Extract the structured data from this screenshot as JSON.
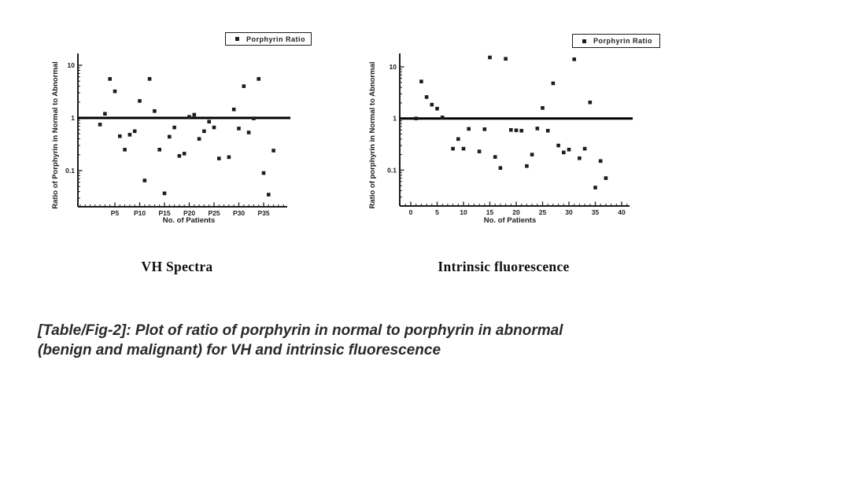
{
  "figure_caption": {
    "line1": "[Table/Fig-2]: Plot of ratio of porphyrin in normal to porphyrin in abnormal",
    "line2": "(benign and malignant) for VH and intrinsic fluorescence"
  },
  "colors": {
    "ink": "#1c1c1c",
    "reference_line": "#000000",
    "background": "#ffffff"
  },
  "chart_data": [
    {
      "type": "scatter",
      "title": "VH Spectra",
      "xlabel": "No. of Patients",
      "ylabel": "Ratio of Porphyrin in Normal to Abnormal",
      "legend": [
        "Porphyrin Ratio"
      ],
      "legend_position": "top-right-above-plot",
      "marker": "filled-square",
      "xscale": "linear",
      "yscale": "log",
      "grid": false,
      "xlim": [
        -2.5,
        39.8
      ],
      "ylim": [
        0.02,
        16.8
      ],
      "ref_line_y": 1,
      "xticks": [
        {
          "v": 5,
          "label": "P5"
        },
        {
          "v": 10,
          "label": "P10"
        },
        {
          "v": 15,
          "label": "P15"
        },
        {
          "v": 20,
          "label": "P20"
        },
        {
          "v": 25,
          "label": "P25"
        },
        {
          "v": 30,
          "label": "P30"
        },
        {
          "v": 35,
          "label": "P35"
        }
      ],
      "yticks": [
        {
          "v": 10,
          "label": "10"
        },
        {
          "v": 1,
          "label": "1"
        },
        {
          "v": 0.1,
          "label": "0.1"
        }
      ],
      "points": [
        [
          2,
          0.75
        ],
        [
          3,
          1.2
        ],
        [
          4,
          5.5
        ],
        [
          5,
          3.2
        ],
        [
          6,
          0.45
        ],
        [
          7,
          0.25
        ],
        [
          8,
          0.48
        ],
        [
          9,
          0.56
        ],
        [
          10,
          2.1
        ],
        [
          11,
          0.065
        ],
        [
          12,
          5.5
        ],
        [
          13,
          1.35
        ],
        [
          14,
          0.25
        ],
        [
          15,
          0.037
        ],
        [
          16,
          0.44
        ],
        [
          17,
          0.66
        ],
        [
          18,
          0.19
        ],
        [
          19,
          0.21
        ],
        [
          20,
          1.05
        ],
        [
          21,
          1.15
        ],
        [
          22,
          0.4
        ],
        [
          23,
          0.56
        ],
        [
          24,
          0.85
        ],
        [
          25,
          0.66
        ],
        [
          26,
          0.17
        ],
        [
          28,
          0.18
        ],
        [
          29,
          1.45
        ],
        [
          30,
          0.63
        ],
        [
          31,
          4.0
        ],
        [
          32,
          0.53
        ],
        [
          33,
          0.98
        ],
        [
          34,
          5.5
        ],
        [
          35,
          0.09
        ],
        [
          36,
          0.035
        ],
        [
          37,
          0.24
        ]
      ]
    },
    {
      "type": "scatter",
      "title": "Intrinsic fluorescence",
      "xlabel": "No. of Patients",
      "ylabel": "Ratio of porphyrin in Normal to Abnormal",
      "legend": [
        "Porphyrin Ratio"
      ],
      "legend_position": "top-right-above-plot",
      "marker": "filled-square",
      "xscale": "linear",
      "yscale": "log",
      "grid": false,
      "xlim": [
        -2.1,
        41.5
      ],
      "ylim": [
        0.02,
        18
      ],
      "ref_line_y": 1,
      "xticks": [
        {
          "v": 0,
          "label": "0"
        },
        {
          "v": 5,
          "label": "5"
        },
        {
          "v": 10,
          "label": "10"
        },
        {
          "v": 15,
          "label": "15"
        },
        {
          "v": 20,
          "label": "20"
        },
        {
          "v": 25,
          "label": "25"
        },
        {
          "v": 30,
          "label": "30"
        },
        {
          "v": 35,
          "label": "35"
        },
        {
          "v": 40,
          "label": "40"
        }
      ],
      "yticks": [
        {
          "v": 10,
          "label": "10"
        },
        {
          "v": 1,
          "label": "1"
        },
        {
          "v": 0.1,
          "label": "0.1"
        }
      ],
      "points": [
        [
          1,
          1.0
        ],
        [
          2,
          5.2
        ],
        [
          3,
          2.6
        ],
        [
          4,
          1.85
        ],
        [
          5,
          1.55
        ],
        [
          6,
          1.05
        ],
        [
          8,
          0.26
        ],
        [
          9,
          0.4
        ],
        [
          10,
          0.26
        ],
        [
          11,
          0.63
        ],
        [
          13,
          0.23
        ],
        [
          14,
          0.62
        ],
        [
          15,
          15.2
        ],
        [
          16,
          0.18
        ],
        [
          17,
          0.11
        ],
        [
          18,
          14.3
        ],
        [
          19,
          0.6
        ],
        [
          20,
          0.59
        ],
        [
          21,
          0.58
        ],
        [
          22,
          0.12
        ],
        [
          23,
          0.2
        ],
        [
          24,
          0.64
        ],
        [
          25,
          1.6
        ],
        [
          26,
          0.58
        ],
        [
          27,
          4.8
        ],
        [
          28,
          0.3
        ],
        [
          29,
          0.22
        ],
        [
          30,
          0.25
        ],
        [
          31,
          14.0
        ],
        [
          32,
          0.17
        ],
        [
          33,
          0.26
        ],
        [
          34,
          2.05
        ],
        [
          35,
          0.046
        ],
        [
          36,
          0.15
        ],
        [
          37,
          0.07
        ]
      ]
    }
  ]
}
